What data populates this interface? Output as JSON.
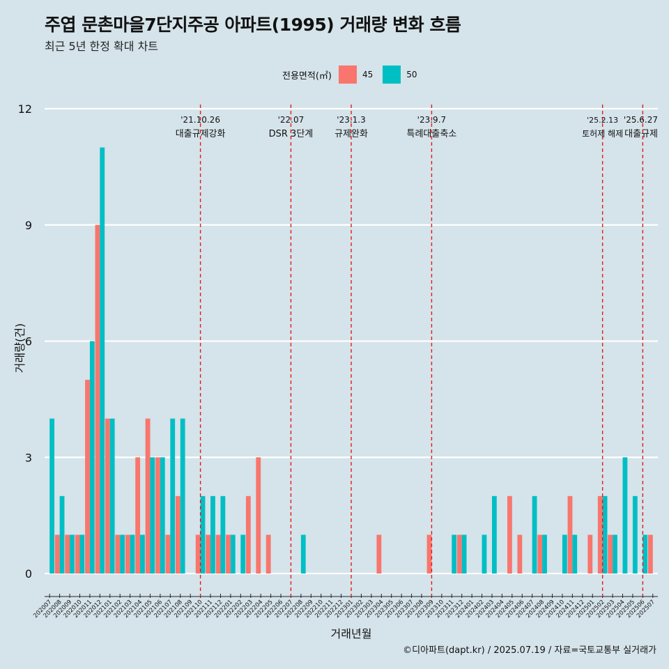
{
  "chart_data": {
    "type": "bar",
    "title": "주엽 문촌마을7단지주공 아파트(1995) 거래량 변화 흐름",
    "subtitle": "최근 5년 한정 확대 차트",
    "xlabel": "거래년월",
    "ylabel": "거래량(건)",
    "ylim": [
      0,
      12
    ],
    "yticks": [
      0,
      3,
      6,
      9,
      12
    ],
    "legend": {
      "title": "전용면적(㎡)",
      "position": "top"
    },
    "categories": [
      "202007",
      "202008",
      "202009",
      "202010",
      "202011",
      "202012",
      "202101",
      "202102",
      "202103",
      "202104",
      "202105",
      "202106",
      "202107",
      "202108",
      "202109",
      "202110",
      "202111",
      "202112",
      "202201",
      "202202",
      "202203",
      "202204",
      "202205",
      "202206",
      "202207",
      "202208",
      "202209",
      "202210",
      "202211",
      "202212",
      "202301",
      "202302",
      "202303",
      "202304",
      "202305",
      "202306",
      "202307",
      "202308",
      "202309",
      "202310",
      "202311",
      "202312",
      "202401",
      "202402",
      "202403",
      "202404",
      "202405",
      "202406",
      "202407",
      "202408",
      "202409",
      "202410",
      "202411",
      "202412",
      "202501",
      "202502",
      "202503",
      "202504",
      "202505",
      "202506",
      "202507"
    ],
    "series": [
      {
        "name": "45",
        "color": "#f8766d",
        "values": [
          0,
          1,
          1,
          1,
          5,
          9,
          4,
          1,
          1,
          3,
          4,
          3,
          1,
          2,
          0,
          1,
          1,
          1,
          1,
          0,
          2,
          3,
          1,
          0,
          0,
          0,
          0,
          0,
          0,
          0,
          0,
          0,
          0,
          1,
          0,
          0,
          0,
          0,
          1,
          0,
          0,
          1,
          0,
          0,
          0,
          0,
          2,
          1,
          0,
          1,
          0,
          0,
          2,
          0,
          1,
          2,
          1,
          0,
          0,
          0,
          1
        ]
      },
      {
        "name": "50",
        "color": "#00bfc4",
        "values": [
          4,
          2,
          1,
          1,
          6,
          11,
          4,
          1,
          1,
          1,
          3,
          3,
          4,
          4,
          0,
          2,
          2,
          2,
          1,
          1,
          0,
          0,
          0,
          0,
          0,
          1,
          0,
          0,
          0,
          0,
          0,
          0,
          0,
          0,
          0,
          0,
          0,
          0,
          0,
          0,
          1,
          1,
          0,
          1,
          2,
          0,
          0,
          0,
          2,
          1,
          0,
          1,
          1,
          0,
          0,
          2,
          1,
          3,
          2,
          1,
          0
        ]
      }
    ],
    "events": [
      {
        "x": "202110",
        "date": "'21.10.26",
        "label": "대출규제강화"
      },
      {
        "x": "202207",
        "date": "'22.07",
        "label": "DSR 3단계"
      },
      {
        "x": "202301",
        "date": "'23.1.3",
        "label": "규제완화"
      },
      {
        "x": "202309",
        "date": "'23.9.7",
        "label": "특례대출축소"
      },
      {
        "x": "202502",
        "date": "'25.2.13",
        "label": "토허제 해제"
      },
      {
        "x": "202506",
        "date": "'25.6.27",
        "label": "대출규제"
      }
    ],
    "grid": true
  },
  "caption": "©디아파트(dapt.kr) / 2025.07.19 / 자료=국토교통부 실거래가"
}
